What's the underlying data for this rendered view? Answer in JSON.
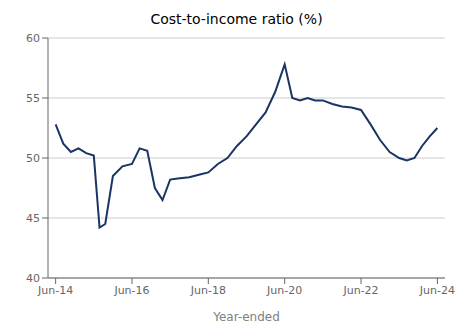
{
  "chart_data": {
    "type": "line",
    "title": "Cost-to-income ratio (%)",
    "xlabel": "Year-ended",
    "color": "#1a3464",
    "grid": "y",
    "xlim": [
      -0.2,
      10.2
    ],
    "xticks": [
      {
        "value": 0,
        "label": "Jun-14"
      },
      {
        "value": 2,
        "label": "Jun-16"
      },
      {
        "value": 4,
        "label": "Jun-18"
      },
      {
        "value": 6,
        "label": "Jun-20"
      },
      {
        "value": 8,
        "label": "Jun-22"
      },
      {
        "value": 10,
        "label": "Jun-24"
      }
    ],
    "ylim": [
      40,
      60
    ],
    "yticks": [
      40,
      45,
      50,
      55,
      60
    ],
    "x": [
      0.0,
      0.2,
      0.4,
      0.6,
      0.8,
      1.0,
      1.15,
      1.3,
      1.5,
      1.75,
      2.0,
      2.2,
      2.4,
      2.6,
      2.8,
      3.0,
      3.2,
      3.5,
      3.75,
      4.0,
      4.25,
      4.5,
      4.75,
      5.0,
      5.25,
      5.5,
      5.75,
      6.0,
      6.2,
      6.4,
      6.6,
      6.8,
      7.0,
      7.25,
      7.5,
      7.75,
      8.0,
      8.25,
      8.5,
      8.75,
      9.0,
      9.2,
      9.4,
      9.6,
      9.8,
      10.0
    ],
    "values": [
      52.8,
      51.2,
      50.5,
      50.8,
      50.4,
      50.2,
      44.2,
      44.5,
      48.5,
      49.3,
      49.5,
      50.8,
      50.6,
      47.5,
      46.5,
      48.2,
      48.3,
      48.4,
      48.6,
      48.8,
      49.5,
      50.0,
      51.0,
      51.8,
      52.8,
      53.8,
      55.5,
      57.8,
      55.0,
      54.8,
      55.0,
      54.8,
      54.8,
      54.5,
      54.3,
      54.2,
      54.0,
      52.8,
      51.5,
      50.5,
      50.0,
      49.8,
      50.0,
      51.0,
      51.8,
      52.5
    ]
  }
}
